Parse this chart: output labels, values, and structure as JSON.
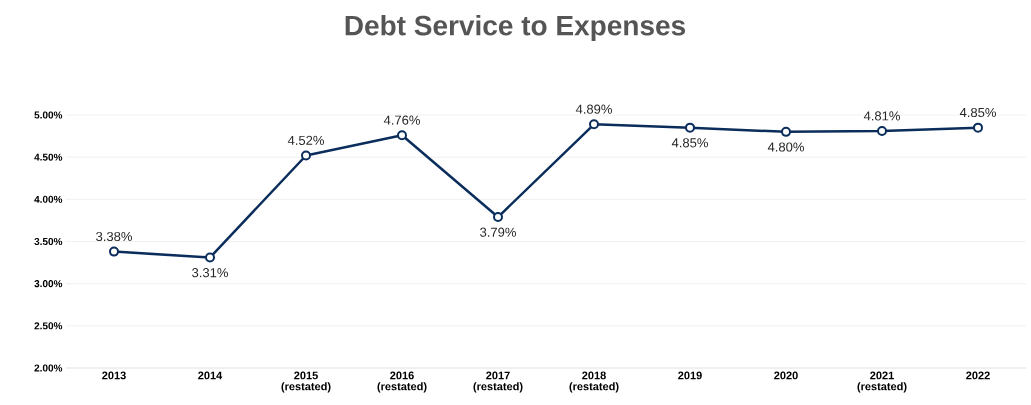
{
  "chart_data": {
    "type": "line",
    "title": "Debt Service to Expenses",
    "categories": [
      "2013",
      "2014",
      "2015 (restated)",
      "2016 (restated)",
      "2017 (restated)",
      "2018 (restated)",
      "2019",
      "2020",
      "2021 (restated)",
      "2022"
    ],
    "values": [
      3.38,
      3.31,
      4.52,
      4.76,
      3.79,
      4.89,
      4.85,
      4.8,
      4.81,
      4.85
    ],
    "value_labels": [
      "3.38%",
      "3.31%",
      "4.52%",
      "4.76%",
      "3.79%",
      "4.89%",
      "4.85%",
      "4.80%",
      "4.81%",
      "4.85%"
    ],
    "color": "#0b2d5b",
    "ylim": [
      2,
      5
    ],
    "yticks": [
      {
        "value": 2,
        "label": "2.00%"
      },
      {
        "value": 2.5,
        "label": "2.50%"
      },
      {
        "value": 3,
        "label": "3.00%"
      },
      {
        "value": 3.5,
        "label": "3.50%"
      },
      {
        "value": 4,
        "label": "4.00%"
      },
      {
        "value": 4.5,
        "label": "4.50%"
      },
      {
        "value": 5,
        "label": "5.00%"
      }
    ],
    "grid": "y",
    "marker": "circle",
    "line_style": "solid"
  }
}
